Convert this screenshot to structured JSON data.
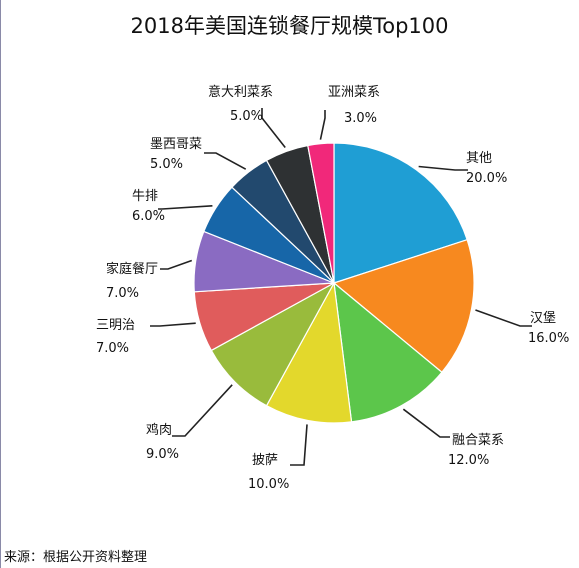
{
  "chart_data": {
    "type": "pie",
    "title": "2018年美国连锁餐厅规模Top100",
    "slices": [
      {
        "label": "其他",
        "value": 20.0,
        "value_label": "20.0%",
        "color": "#1f9ed4"
      },
      {
        "label": "汉堡",
        "value": 16.0,
        "value_label": "16.0%",
        "color": "#f7891f"
      },
      {
        "label": "融合菜系",
        "value": 12.0,
        "value_label": "12.0%",
        "color": "#5cc64b"
      },
      {
        "label": "披萨",
        "value": 10.0,
        "value_label": "10.0%",
        "color": "#e3d82c"
      },
      {
        "label": "鸡肉",
        "value": 9.0,
        "value_label": "9.0%",
        "color": "#99bb3c"
      },
      {
        "label": "三明治",
        "value": 7.0,
        "value_label": "7.0%",
        "color": "#e05c5c"
      },
      {
        "label": "家庭餐厅",
        "value": 7.0,
        "value_label": "7.0%",
        "color": "#8a6bc2"
      },
      {
        "label": "牛排",
        "value": 6.0,
        "value_label": "6.0%",
        "color": "#1766a8"
      },
      {
        "label": "墨西哥菜",
        "value": 5.0,
        "value_label": "5.0%",
        "color": "#22496e"
      },
      {
        "label": "意大利菜系",
        "value": 5.0,
        "value_label": "5.0%",
        "color": "#2e3133"
      },
      {
        "label": "亚洲菜系",
        "value": 3.0,
        "value_label": "3.0%",
        "color": "#f1287a"
      }
    ]
  },
  "source": "来源：根据公开资料整理"
}
